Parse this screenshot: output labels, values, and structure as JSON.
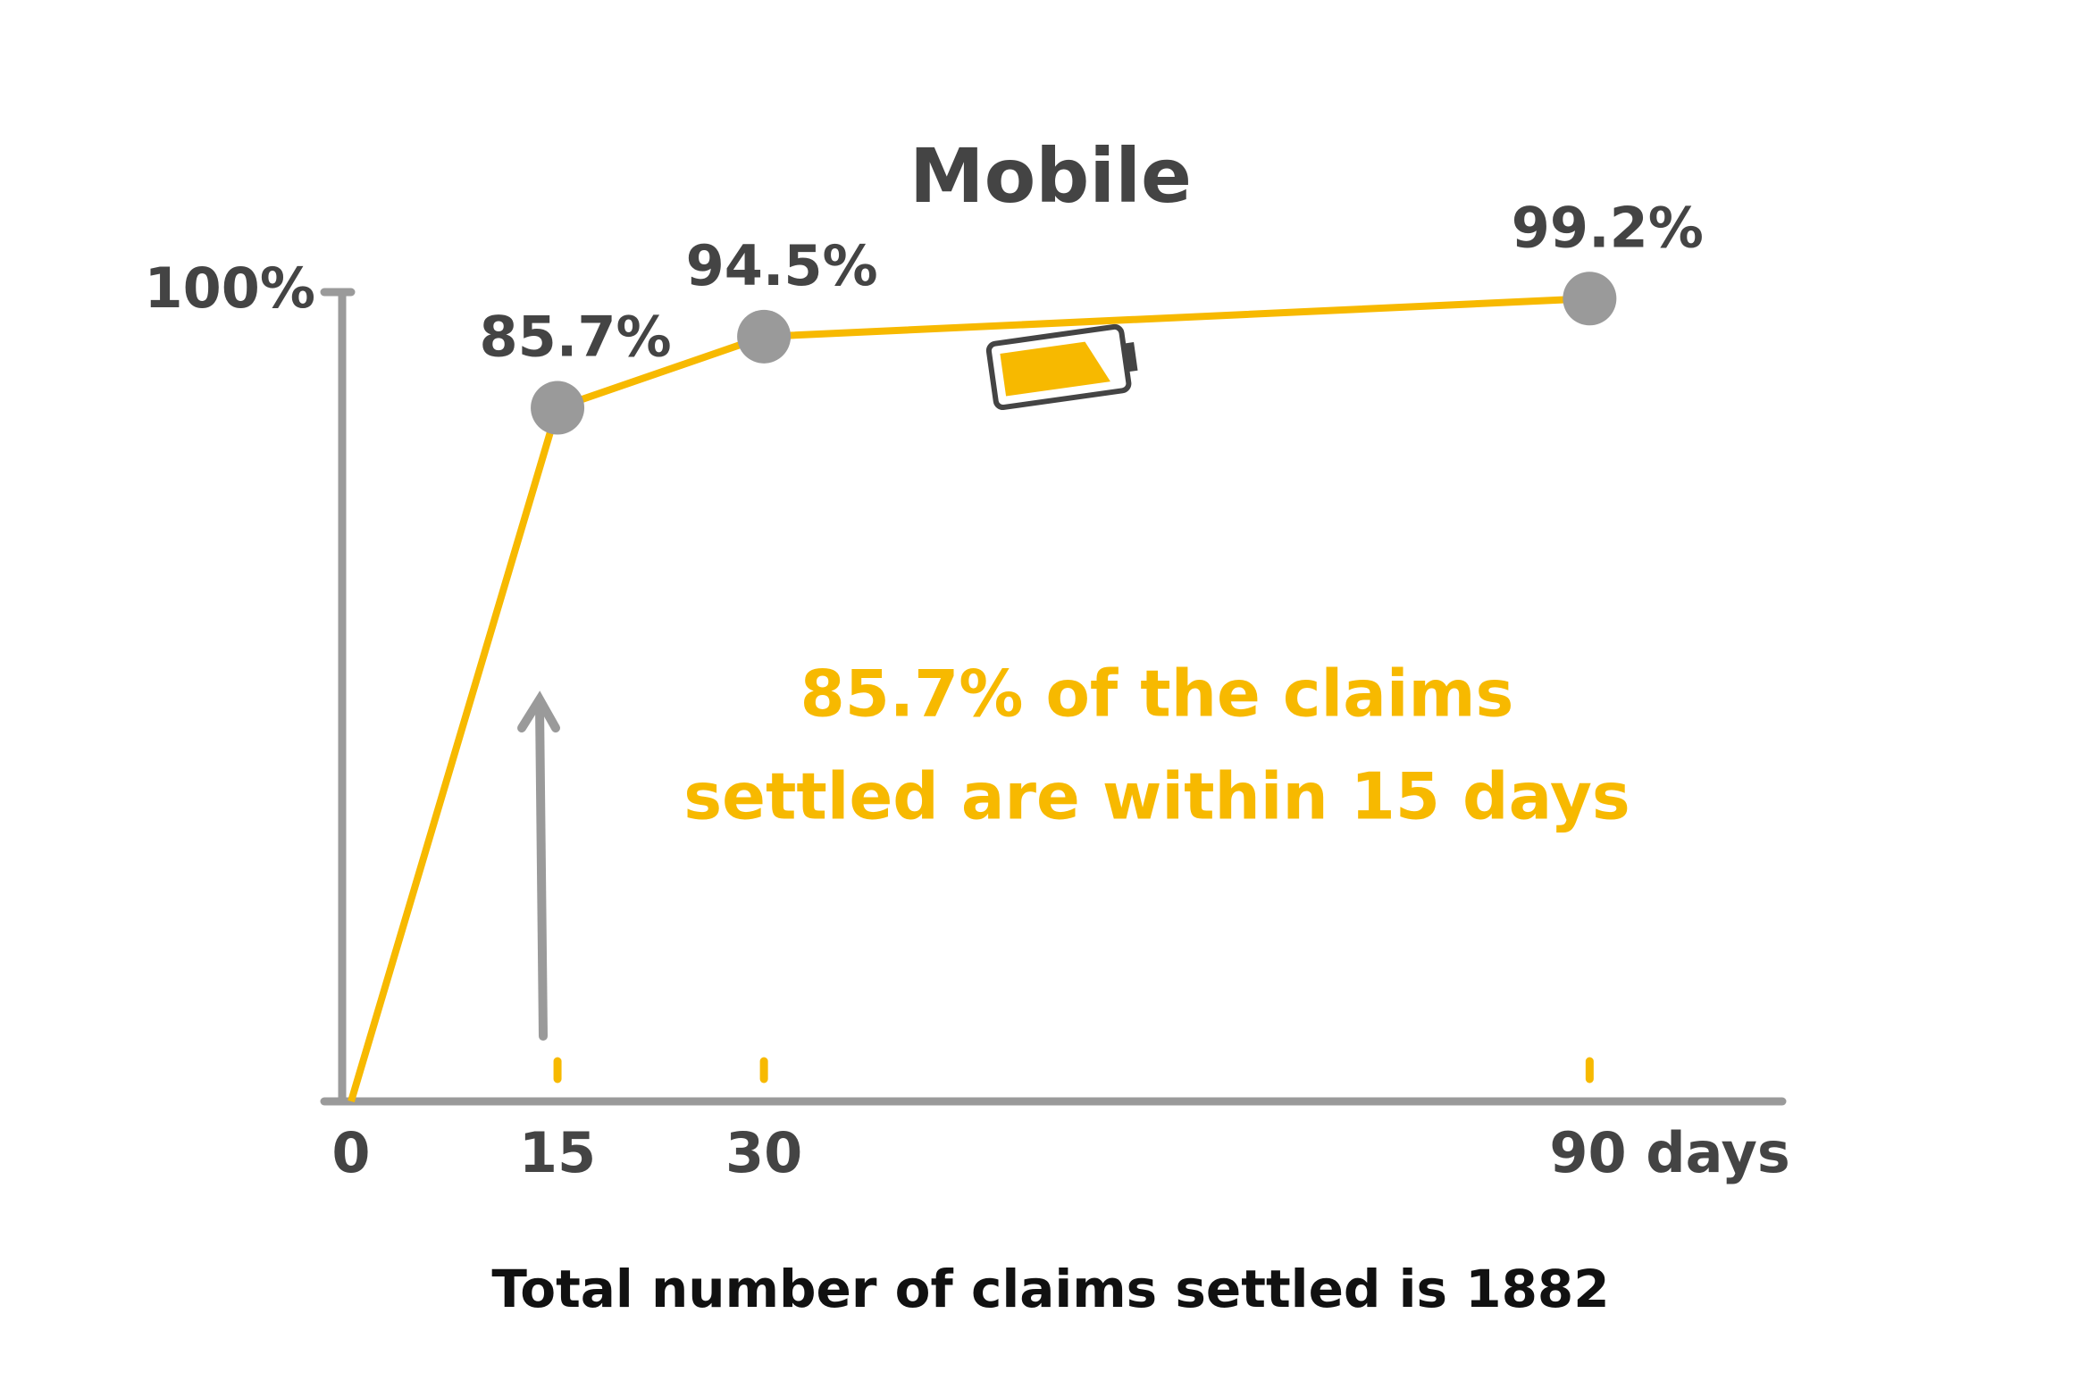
{
  "chart_data": {
    "type": "line",
    "title": "Mobile",
    "x": [
      0,
      15,
      30,
      90
    ],
    "series": [
      {
        "color": "#f7b900",
        "values": [
          0,
          85.7,
          94.5,
          99.2
        ],
        "value_labels": [
          null,
          "85.7%",
          "94.5%",
          "99.2%"
        ]
      }
    ],
    "xlim": [
      0,
      104
    ],
    "xticks": [
      0,
      15,
      30,
      {
        "value": 90,
        "label": "90 days"
      }
    ],
    "ylim": [
      0,
      100
    ],
    "yticks": [
      {
        "value": 100,
        "label": "100%"
      }
    ],
    "annotation": [
      "85.7% of the claims",
      "settled are within 15 days"
    ],
    "caption": "Total number of claims settled is 1882",
    "marker_color": "#9a9a9a",
    "axis_color": "#9a9a9a",
    "text_color": "#444444",
    "annotation_color": "#f7b900"
  }
}
